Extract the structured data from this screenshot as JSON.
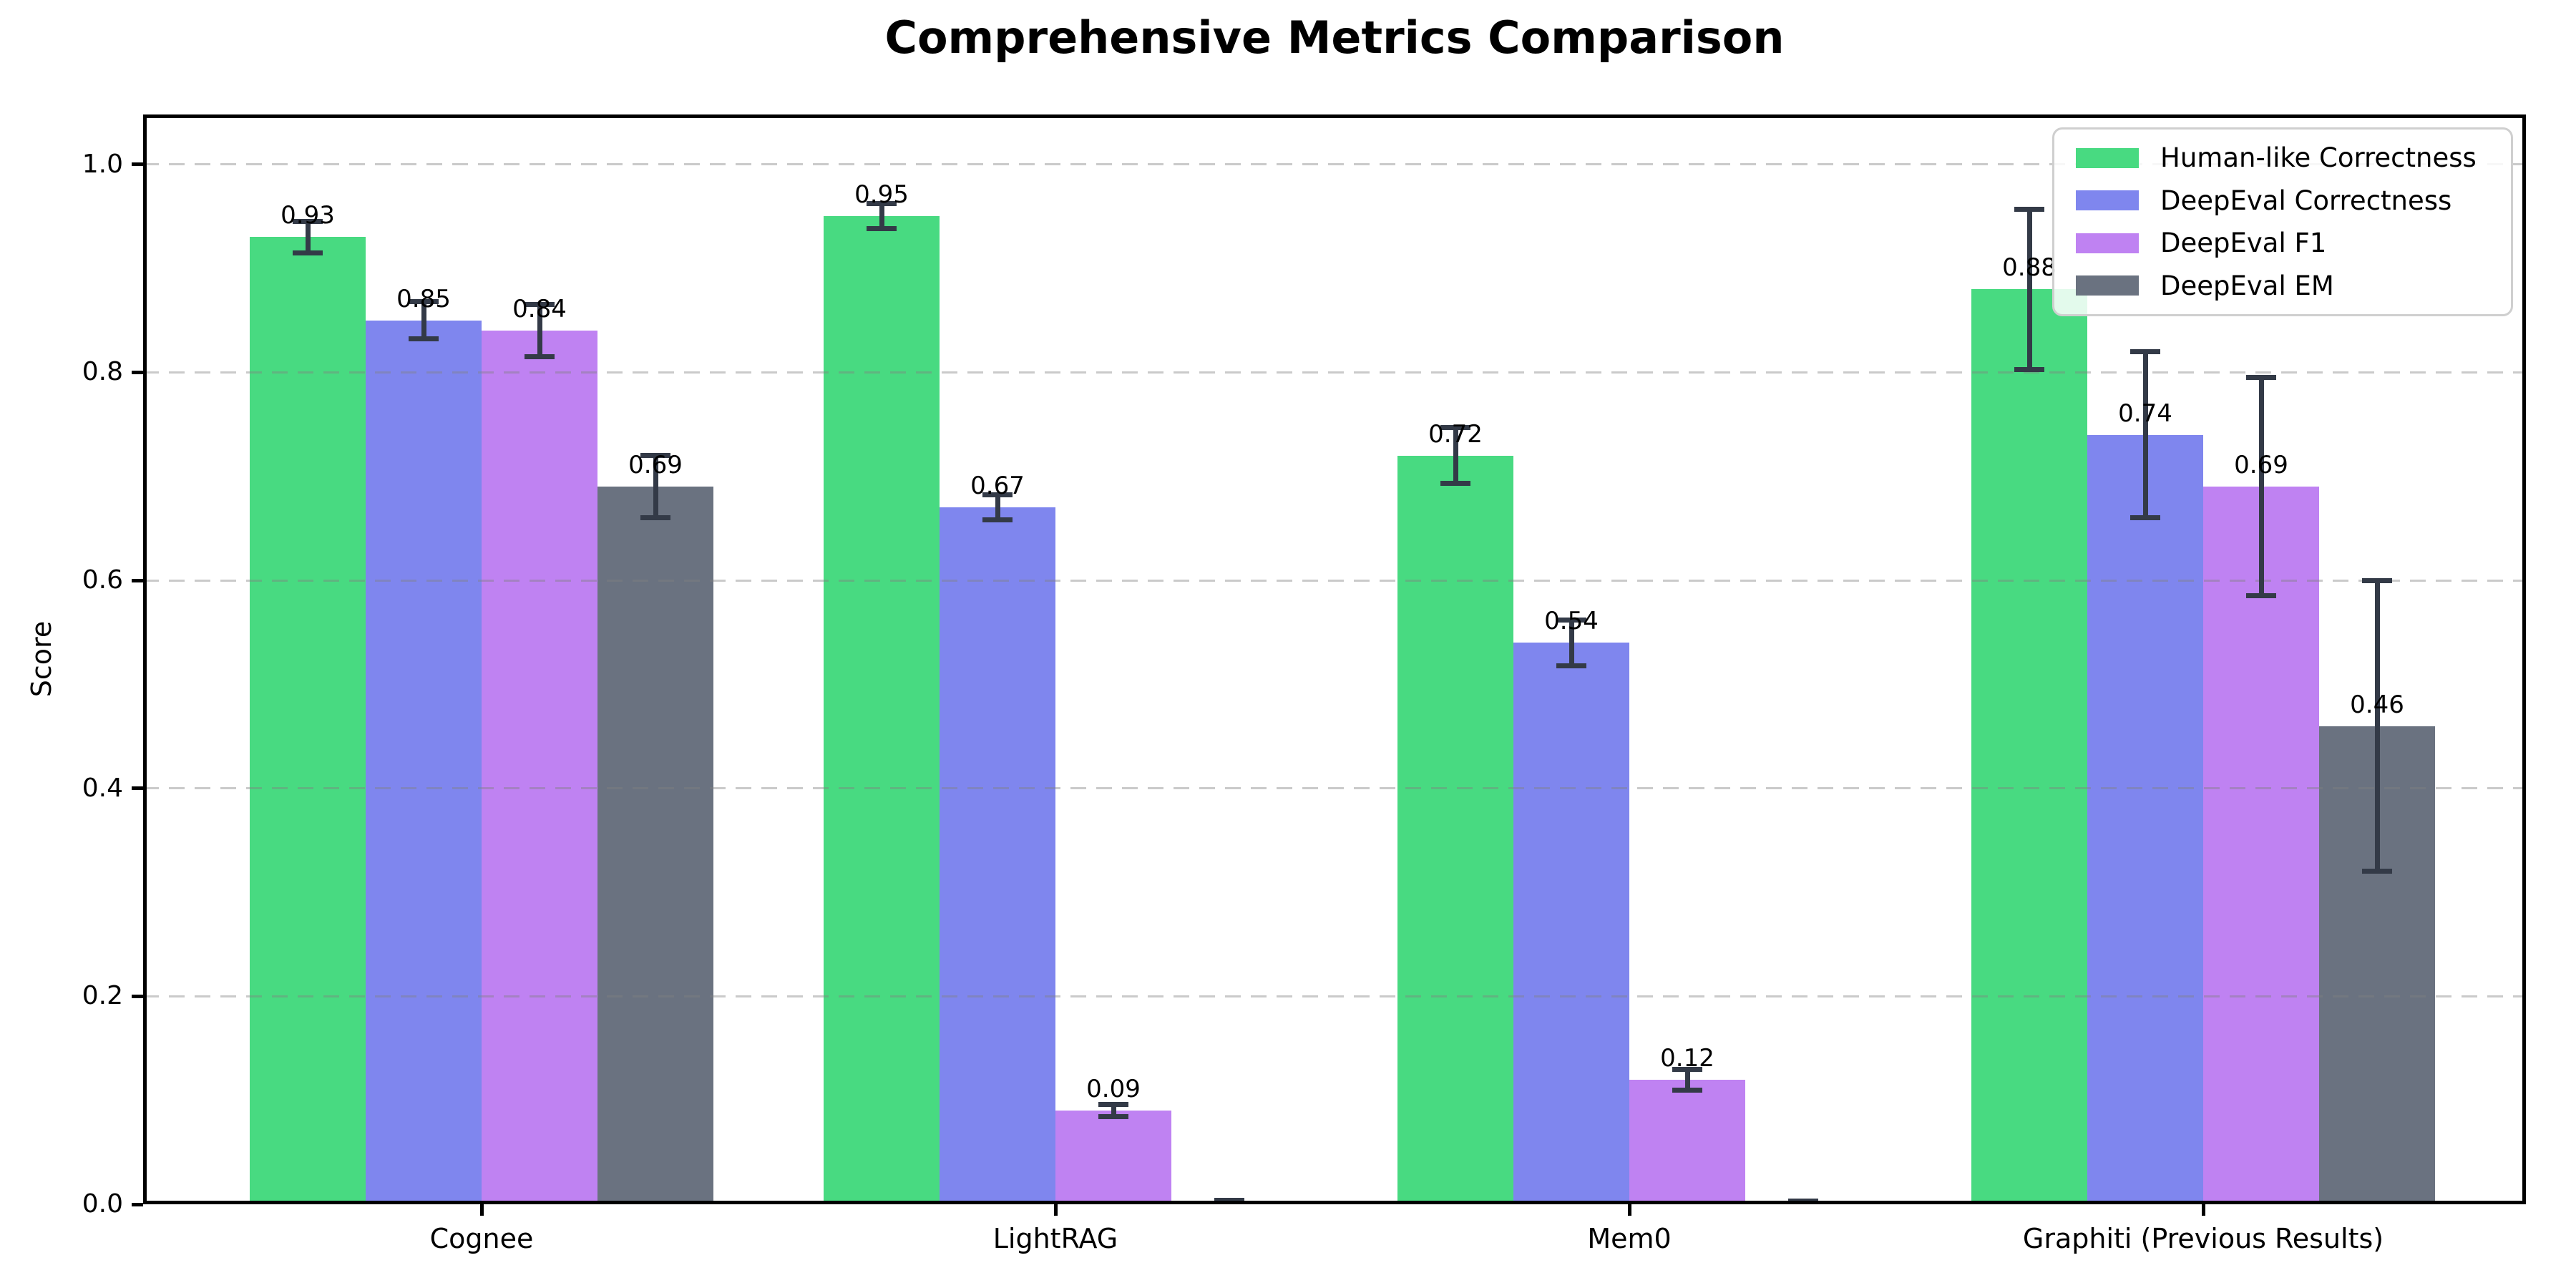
{
  "figure": {
    "background": "#ffffff",
    "text_color": "#000000"
  },
  "chart_data": {
    "type": "bar",
    "title": "Comprehensive Metrics Comparison",
    "xlabel": "",
    "ylabel": "Score",
    "categories": [
      "Cognee",
      "LightRAG",
      "Mem0",
      "Graphiti (Previous Results)"
    ],
    "series": [
      {
        "name": "Human-like Correctness",
        "color": "#48da81",
        "values": [
          0.93,
          0.95,
          0.72,
          0.88
        ],
        "errors": [
          0.015,
          0.012,
          0.027,
          0.077
        ],
        "labels": [
          "0.93",
          "0.95",
          "0.72",
          "0.88"
        ]
      },
      {
        "name": "DeepEval Correctness",
        "color": "#7f86ee",
        "values": [
          0.85,
          0.67,
          0.54,
          0.74
        ],
        "errors": [
          0.018,
          0.012,
          0.022,
          0.08
        ],
        "labels": [
          "0.85",
          "0.67",
          "0.54",
          "0.74"
        ]
      },
      {
        "name": "DeepEval F1",
        "color": "#bf82f2",
        "values": [
          0.84,
          0.09,
          0.12,
          0.69
        ],
        "errors": [
          0.025,
          0.006,
          0.01,
          0.105
        ],
        "labels": [
          "0.84",
          "0.09",
          "0.12",
          "0.69"
        ]
      },
      {
        "name": "DeepEval EM",
        "color": "#6a7280",
        "values": [
          0.69,
          0.0,
          0.0,
          0.46
        ],
        "errors": [
          0.03,
          0.004,
          0.003,
          0.14
        ],
        "labels": [
          "0.69",
          "",
          "",
          "0.46"
        ]
      }
    ],
    "ytick_labels": [
      "0.0",
      "0.2",
      "0.4",
      "0.6",
      "0.8",
      "1.0"
    ],
    "yticks": [
      0.0,
      0.2,
      0.4,
      0.6,
      0.8,
      1.0
    ],
    "ylim": [
      0,
      1.048
    ],
    "grid": "horizontal-dashed-drawn-over-bars",
    "legend_position": "upper-right",
    "error_bar_color": "#333a47"
  }
}
